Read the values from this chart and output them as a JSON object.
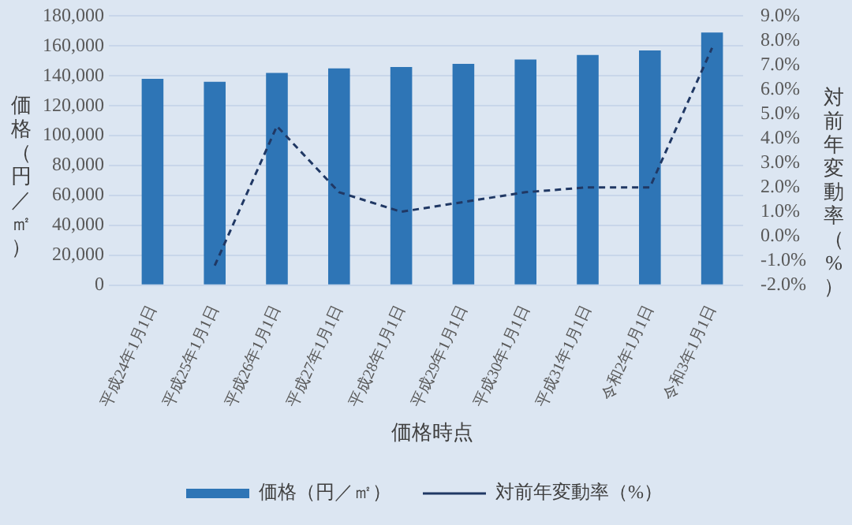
{
  "chart_data": {
    "type": "bar",
    "xlabel": "価格時点",
    "ylabel": "価格（円／㎡）",
    "y2label": "対前年変動率（%）",
    "categories": [
      "平成24年1月1日",
      "平成25年1月1日",
      "平成26年1月1日",
      "平成27年1月1日",
      "平成28年1月1日",
      "平成29年1月1日",
      "平成30年1月1日",
      "平成31年1月1日",
      "令和2年1月1日",
      "令和3年1月1日"
    ],
    "series": [
      {
        "name": "価格（円／㎡）",
        "color": "#2e75b6",
        "values": [
          138000,
          136000,
          142000,
          145000,
          146000,
          148000,
          151000,
          154000,
          157000,
          169000
        ]
      },
      {
        "name": "対前年変動率（%）",
        "type": "line",
        "axis": "y2",
        "color": "#203864",
        "line_style": "dashed",
        "marker": "none",
        "values": [
          null,
          -1.2,
          4.5,
          1.8,
          1.0,
          1.4,
          1.8,
          2.0,
          2.0,
          7.7
        ]
      }
    ],
    "ylim": [
      0,
      180000
    ],
    "yticks": [
      {
        "value": 0,
        "label": "0"
      },
      {
        "value": 20000,
        "label": "20,000"
      },
      {
        "value": 40000,
        "label": "40,000"
      },
      {
        "value": 60000,
        "label": "60,000"
      },
      {
        "value": 80000,
        "label": "80,000"
      },
      {
        "value": 100000,
        "label": "100,000"
      },
      {
        "value": 120000,
        "label": "120,000"
      },
      {
        "value": 140000,
        "label": "140,000"
      },
      {
        "value": 160000,
        "label": "160,000"
      },
      {
        "value": 180000,
        "label": "180,000"
      }
    ],
    "y2lim": [
      -2,
      9
    ],
    "y2ticks": [
      {
        "value": -2,
        "label": "-2.0%"
      },
      {
        "value": -1,
        "label": "-1.0%"
      },
      {
        "value": 0,
        "label": "0.0%"
      },
      {
        "value": 1,
        "label": "1.0%"
      },
      {
        "value": 2,
        "label": "2.0%"
      },
      {
        "value": 3,
        "label": "3.0%"
      },
      {
        "value": 4,
        "label": "4.0%"
      },
      {
        "value": 5,
        "label": "5.0%"
      },
      {
        "value": 6,
        "label": "6.0%"
      },
      {
        "value": 7,
        "label": "7.0%"
      },
      {
        "value": 8,
        "label": "8.0%"
      },
      {
        "value": 9,
        "label": "9.0%"
      }
    ],
    "grid": "y",
    "legend": "bottom"
  }
}
